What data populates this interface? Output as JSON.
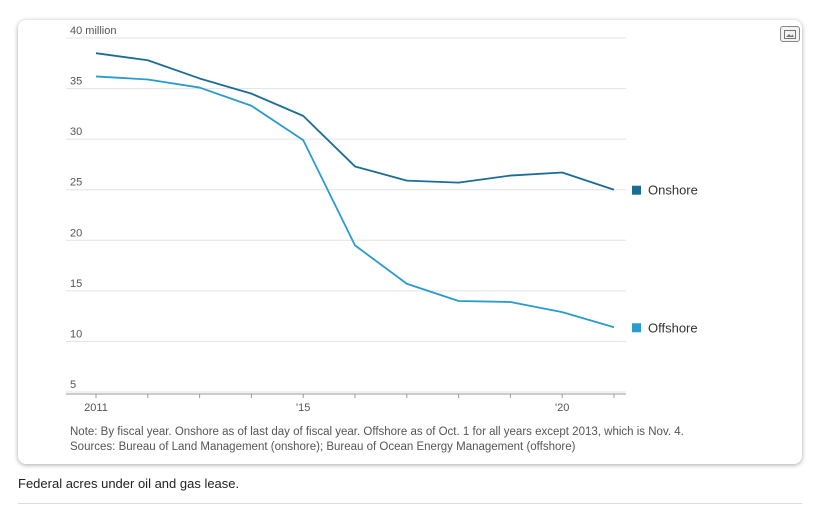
{
  "chart_data": {
    "type": "line",
    "title": "",
    "xlabel": "",
    "ylabel": "",
    "ylim": [
      5,
      40
    ],
    "xlim": [
      2011,
      2021
    ],
    "y_ticks": [
      {
        "value": 40,
        "label": "40 million"
      },
      {
        "value": 35,
        "label": "35"
      },
      {
        "value": 30,
        "label": "30"
      },
      {
        "value": 25,
        "label": "25"
      },
      {
        "value": 20,
        "label": "20"
      },
      {
        "value": 15,
        "label": "15"
      },
      {
        "value": 10,
        "label": "10"
      },
      {
        "value": 5,
        "label": "5"
      }
    ],
    "x_ticks": [
      {
        "value": 2011,
        "label": "2011"
      },
      {
        "value": 2015,
        "label": "'15"
      },
      {
        "value": 2020,
        "label": "'20"
      }
    ],
    "x": [
      2011,
      2012,
      2013,
      2014,
      2015,
      2016,
      2017,
      2018,
      2019,
      2020,
      2021
    ],
    "series": [
      {
        "name": "Onshore",
        "color": "#1b6d96",
        "values": [
          38.5,
          37.8,
          36.0,
          34.5,
          32.3,
          27.3,
          25.9,
          25.7,
          26.4,
          26.7,
          25.0
        ]
      },
      {
        "name": "Offshore",
        "color": "#2a9bcf",
        "values": [
          36.2,
          35.9,
          35.1,
          33.3,
          29.9,
          19.5,
          15.7,
          14.0,
          13.9,
          12.9,
          11.4
        ]
      }
    ],
    "grid": true,
    "legend": "right, labels at line ends"
  },
  "notes": {
    "line1": "Note: By fiscal year. Onshore as of last day of fiscal year. Offshore as of Oct. 1 for all years except 2013, which is Nov. 4.",
    "line2": "Sources: Bureau of Land Management (onshore); Bureau of Ocean Energy Management (offshore)"
  },
  "caption": "Federal acres under oil and gas lease.",
  "expand_icon": "image-expand-icon"
}
